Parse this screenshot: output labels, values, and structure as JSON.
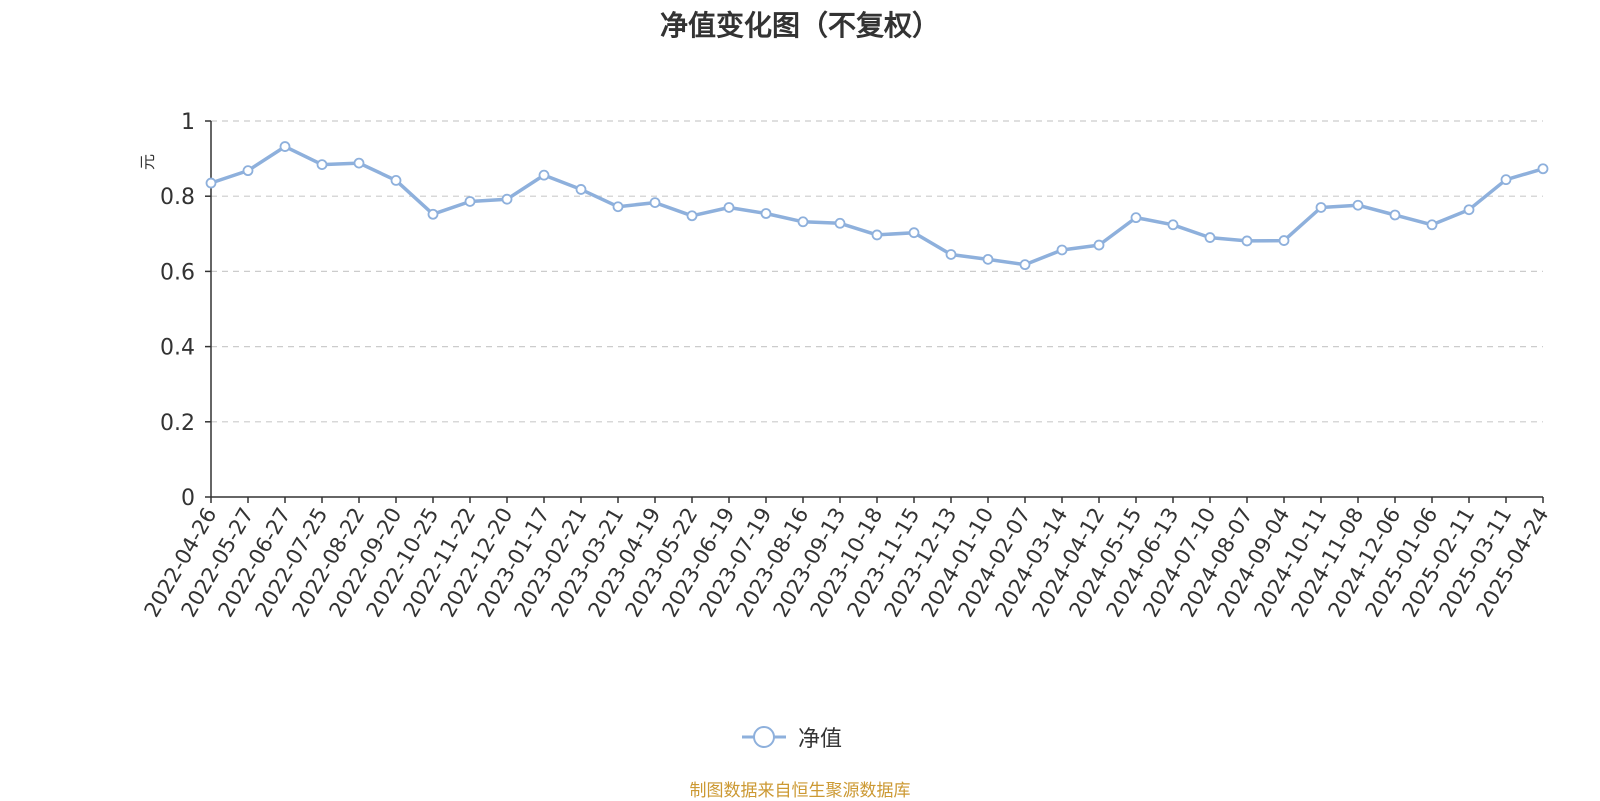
{
  "chart_data": {
    "type": "line",
    "title": "净值变化图（不复权）",
    "ylabel": "元",
    "xlabel": "",
    "ylim": [
      0,
      1
    ],
    "yticks": [
      "0",
      "0.2",
      "0.4",
      "0.6",
      "0.8",
      "1"
    ],
    "grid": true,
    "legend_position": "bottom-center",
    "x_ticks": [
      "2022-04-26",
      "2022-05-27",
      "2022-06-27",
      "2022-07-25",
      "2022-08-22",
      "2022-09-20",
      "2022-10-25",
      "2022-11-22",
      "2022-12-20",
      "2023-01-17",
      "2023-02-21",
      "2023-03-21",
      "2023-04-19",
      "2023-05-22",
      "2023-06-19",
      "2023-07-19",
      "2023-08-16",
      "2023-09-13",
      "2023-10-18",
      "2023-11-15",
      "2023-12-13",
      "2024-01-10",
      "2024-02-07",
      "2024-03-14",
      "2024-04-12",
      "2024-05-15",
      "2024-06-13",
      "2024-07-10",
      "2024-08-07",
      "2024-09-04",
      "2024-10-11",
      "2024-11-08",
      "2024-12-06",
      "2025-01-06",
      "2025-02-11",
      "2025-03-11",
      "2025-04-24"
    ],
    "series": [
      {
        "name": "净值",
        "color": "#8eb0dc",
        "x": [
          "2022-04-26",
          "2022-05-27",
          "2022-06-27",
          "2022-07-25",
          "2022-08-22",
          "2022-09-20",
          "2022-10-25",
          "2022-11-22",
          "2022-12-20",
          "2023-01-17",
          "2023-02-21",
          "2023-03-21",
          "2023-04-19",
          "2023-05-22",
          "2023-06-19",
          "2023-07-19",
          "2023-08-16",
          "2023-09-13",
          "2023-10-18",
          "2023-11-15",
          "2023-12-13",
          "2024-01-10",
          "2024-02-07",
          "2024-03-14",
          "2024-04-12",
          "2024-05-15",
          "2024-06-13",
          "2024-07-10",
          "2024-08-07",
          "2024-09-04",
          "2024-10-11",
          "2024-11-08",
          "2024-12-06",
          "2025-01-06",
          "2025-02-11",
          "2025-03-11",
          "2025-04-24"
        ],
        "values": [
          0.835,
          0.868,
          0.932,
          0.884,
          0.888,
          0.842,
          0.752,
          0.786,
          0.792,
          0.856,
          0.818,
          0.772,
          0.783,
          0.748,
          0.77,
          0.754,
          0.732,
          0.728,
          0.697,
          0.703,
          0.645,
          0.632,
          0.618,
          0.657,
          0.67,
          0.743,
          0.724,
          0.69,
          0.681,
          0.682,
          0.77,
          0.776,
          0.75,
          0.724,
          0.764,
          0.844,
          0.873
        ]
      }
    ]
  },
  "legend": {
    "label": "净值"
  },
  "source_note": "制图数据来自恒生聚源数据库",
  "colors": {
    "line": "#8eb0dc",
    "ylabel": "#ff0000",
    "source": "#cc9933",
    "grid": "#cccccc",
    "axis": "#333333"
  }
}
